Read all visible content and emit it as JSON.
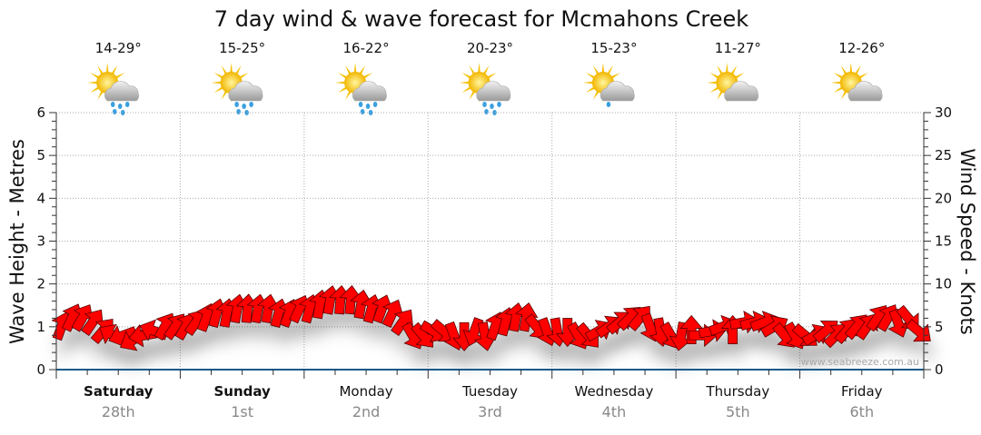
{
  "chart_data": {
    "type": "scatter",
    "title": "7 day wind & wave forecast for Mcmahons Creek",
    "ylabel_left": "Wave Height - Metres",
    "ylabel_right": "Wind Speed - Knots",
    "ylim_left": [
      0,
      6
    ],
    "ylim_right": [
      0,
      30
    ],
    "left_ticks": [
      "0",
      "1",
      "2",
      "3",
      "4",
      "5",
      "6"
    ],
    "right_ticks": [
      "0",
      "5",
      "10",
      "15",
      "20",
      "25",
      "30"
    ],
    "grid": true,
    "watermark": "www.seabreeze.com.au",
    "days": [
      {
        "day": "Saturday",
        "date": "28th",
        "bold": true,
        "temp": "14-29°",
        "icon": "sun-cloud-rain-icon",
        "drops": 3
      },
      {
        "day": "Sunday",
        "date": "1st",
        "bold": true,
        "temp": "15-25°",
        "icon": "sun-cloud-rain-icon",
        "drops": 3
      },
      {
        "day": "Monday",
        "date": "2nd",
        "bold": false,
        "temp": "16-22°",
        "icon": "sun-cloud-rain-icon",
        "drops": 3
      },
      {
        "day": "Tuesday",
        "date": "3rd",
        "bold": false,
        "temp": "20-23°",
        "icon": "sun-cloud-rain-icon",
        "drops": 3
      },
      {
        "day": "Wednesday",
        "date": "4th",
        "bold": false,
        "temp": "15-23°",
        "icon": "sun-cloud-shower-icon",
        "drops": 1
      },
      {
        "day": "Thursday",
        "date": "5th",
        "bold": false,
        "temp": "11-27°",
        "icon": "sun-cloud-icon",
        "drops": 0
      },
      {
        "day": "Friday",
        "date": "6th",
        "bold": false,
        "temp": "12-26°",
        "icon": "sun-cloud-icon",
        "drops": 0
      }
    ],
    "wind_series": {
      "name": "Wind Speed (knots)",
      "interval_hours": 2,
      "color": "#ff0000",
      "speed": [
        5,
        6,
        6,
        5.5,
        4.5,
        4,
        4,
        3.5,
        4,
        4.5,
        5,
        5,
        5,
        5.5,
        6,
        6.5,
        6.5,
        7,
        7,
        7,
        7,
        6.5,
        6.5,
        7,
        7,
        7.5,
        8,
        8,
        8,
        7.5,
        7,
        7,
        6.5,
        5.5,
        4,
        4,
        4.5,
        4.5,
        4,
        4,
        4.5,
        4,
        5,
        5.5,
        6,
        6,
        5,
        4.5,
        4.5,
        4.5,
        4,
        4,
        4.5,
        5,
        5.5,
        6,
        6,
        5,
        4.5,
        4,
        4,
        4.5,
        4,
        4.5,
        5,
        4.5,
        5.5,
        5.5,
        5.5,
        5,
        4,
        4,
        4,
        4,
        4.5,
        4,
        4.5,
        5,
        5,
        6,
        6,
        5.5,
        6,
        4.5
      ],
      "direction_to_deg": [
        20,
        25,
        30,
        35,
        40,
        -60,
        -110,
        -120,
        -100,
        -70,
        30,
        35,
        30,
        35,
        20,
        15,
        10,
        10,
        5,
        10,
        10,
        15,
        20,
        25,
        15,
        10,
        10,
        5,
        5,
        10,
        15,
        20,
        25,
        35,
        150,
        140,
        120,
        130,
        160,
        180,
        200,
        170,
        20,
        15,
        10,
        10,
        140,
        160,
        170,
        180,
        150,
        140,
        60,
        55,
        50,
        45,
        40,
        160,
        170,
        150,
        190,
        0,
        90,
        80,
        70,
        0,
        80,
        75,
        70,
        60,
        140,
        150,
        130,
        60,
        50,
        45,
        40,
        40,
        35,
        35,
        30,
        160,
        140,
        130
      ]
    }
  }
}
